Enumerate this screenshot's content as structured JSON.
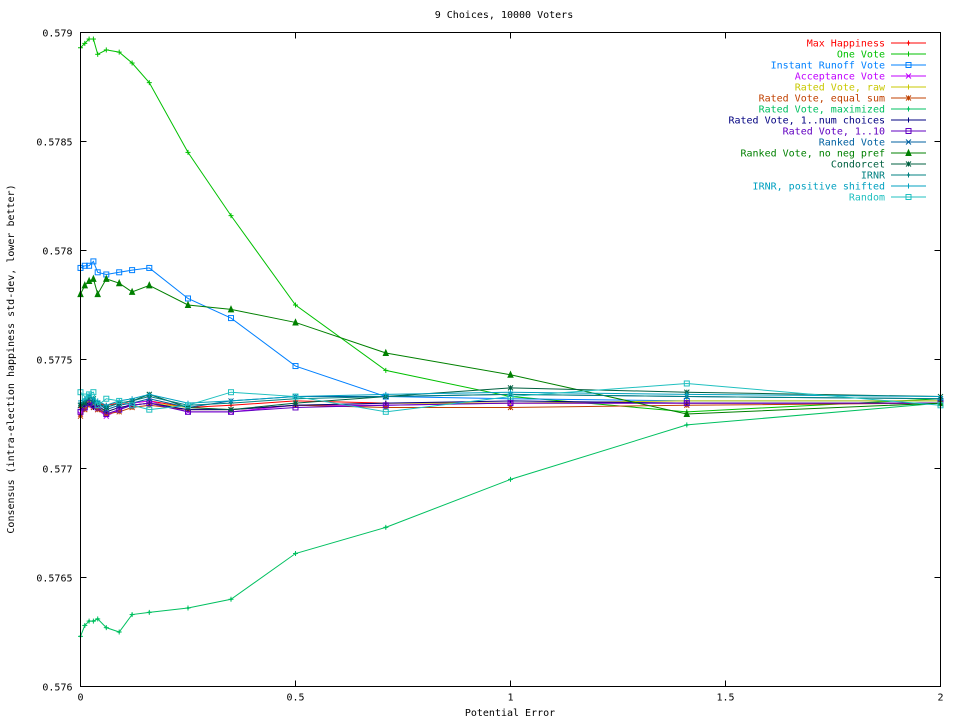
{
  "chart_data": {
    "type": "line",
    "title": "9 Choices, 10000 Voters",
    "xlabel": "Potential Error",
    "ylabel": "Consensus (intra-election happiness std-dev, lower better)",
    "xlim": [
      0,
      2
    ],
    "ylim": [
      0.576,
      0.579
    ],
    "x_ticks": [
      0,
      0.5,
      1,
      1.5,
      2
    ],
    "x_tick_labels": [
      "0",
      "0.5",
      "1",
      "1.5",
      "2"
    ],
    "y_ticks": [
      0.576,
      0.5765,
      0.577,
      0.5775,
      0.578,
      0.5785,
      0.579
    ],
    "y_tick_labels": [
      "0.576",
      "0.5765",
      "0.577",
      "0.5775",
      "0.578",
      "0.5785",
      "0.579"
    ],
    "grid": false,
    "legend_position": "top-right",
    "x": [
      0,
      0.01,
      0.02,
      0.03,
      0.04,
      0.06,
      0.09,
      0.12,
      0.16,
      0.25,
      0.35,
      0.5,
      0.71,
      1,
      1.41,
      2
    ],
    "series": [
      {
        "name": "Max Happiness",
        "color": "#ff0000",
        "marker": "plus-dot",
        "values": [
          0.57728,
          0.5773,
          0.57731,
          0.57729,
          0.5773,
          0.57729,
          0.5773,
          0.5773,
          0.57731,
          0.57728,
          0.57729,
          0.57731,
          0.5773,
          0.5773,
          0.5773,
          0.5773
        ]
      },
      {
        "name": "One Vote",
        "color": "#00c000",
        "marker": "plus",
        "values": [
          0.57893,
          0.57895,
          0.57897,
          0.57897,
          0.5789,
          0.57892,
          0.57891,
          0.57886,
          0.57877,
          0.57845,
          0.57816,
          0.57775,
          0.57745,
          0.57733,
          0.57726,
          0.57732
        ]
      },
      {
        "name": "Instant Runoff Vote",
        "color": "#0080ff",
        "marker": "square",
        "values": [
          0.57792,
          0.57793,
          0.57793,
          0.57795,
          0.5779,
          0.57789,
          0.5779,
          0.57791,
          0.57792,
          0.57778,
          0.57769,
          0.57747,
          0.57733,
          0.57732,
          0.57731,
          0.57731
        ]
      },
      {
        "name": "Acceptance Vote",
        "color": "#c000ff",
        "marker": "x",
        "values": [
          0.57725,
          0.57728,
          0.5773,
          0.57729,
          0.57727,
          0.57724,
          0.57727,
          0.5773,
          0.57731,
          0.57726,
          0.57726,
          0.57729,
          0.57729,
          0.5773,
          0.5773,
          0.5773
        ]
      },
      {
        "name": "Rated Vote, raw",
        "color": "#c8c800",
        "marker": "plus",
        "values": [
          0.57727,
          0.57728,
          0.57731,
          0.57729,
          0.57728,
          0.57726,
          0.57728,
          0.57729,
          0.5773,
          0.57728,
          0.57727,
          0.57729,
          0.5773,
          0.5773,
          0.57731,
          0.57731
        ]
      },
      {
        "name": "Rated Vote, equal sum",
        "color": "#c04000",
        "marker": "star",
        "values": [
          0.57724,
          0.57727,
          0.57729,
          0.57728,
          0.57727,
          0.57725,
          0.57726,
          0.57728,
          0.57729,
          0.57727,
          0.57727,
          0.57729,
          0.57728,
          0.57728,
          0.57729,
          0.5773
        ]
      },
      {
        "name": "Rated Vote, maximized",
        "color": "#00c060",
        "marker": "plus-dot",
        "values": [
          0.57623,
          0.57628,
          0.5763,
          0.5763,
          0.57631,
          0.57627,
          0.57625,
          0.57633,
          0.57634,
          0.57636,
          0.5764,
          0.57661,
          0.57673,
          0.57695,
          0.5772,
          0.5773
        ]
      },
      {
        "name": "Rated Vote, 1..num choices",
        "color": "#000080",
        "marker": "plus",
        "values": [
          0.57727,
          0.57729,
          0.5773,
          0.57728,
          0.57729,
          0.57726,
          0.57728,
          0.57729,
          0.5773,
          0.57727,
          0.57727,
          0.57729,
          0.5773,
          0.57731,
          0.5773,
          0.5773
        ]
      },
      {
        "name": "Rated Vote, 1..10",
        "color": "#6000c0",
        "marker": "square",
        "values": [
          0.57726,
          0.57728,
          0.5773,
          0.57729,
          0.57728,
          0.57725,
          0.57727,
          0.57729,
          0.5773,
          0.57726,
          0.57726,
          0.57728,
          0.57729,
          0.5773,
          0.5773,
          0.5773
        ]
      },
      {
        "name": "Ranked Vote",
        "color": "#0060a0",
        "marker": "x",
        "values": [
          0.57729,
          0.5773,
          0.57732,
          0.5773,
          0.5773,
          0.57727,
          0.57729,
          0.5773,
          0.57732,
          0.57728,
          0.57731,
          0.57733,
          0.57733,
          0.57734,
          0.57733,
          0.57732
        ]
      },
      {
        "name": "Ranked Vote, no neg pref",
        "color": "#008000",
        "marker": "triangle",
        "values": [
          0.5778,
          0.57784,
          0.57786,
          0.57787,
          0.5778,
          0.57787,
          0.57785,
          0.57781,
          0.57784,
          0.57775,
          0.57773,
          0.57767,
          0.57753,
          0.57743,
          0.57725,
          0.5773
        ]
      },
      {
        "name": "Condorcet",
        "color": "#006040",
        "marker": "star",
        "values": [
          0.57729,
          0.5773,
          0.57733,
          0.57732,
          0.5773,
          0.57728,
          0.5773,
          0.57731,
          0.57734,
          0.57728,
          0.57727,
          0.5773,
          0.57733,
          0.57737,
          0.57735,
          0.57733
        ]
      },
      {
        "name": "IRNR",
        "color": "#008080",
        "marker": "plus-dot",
        "values": [
          0.5773,
          0.57731,
          0.57733,
          0.57731,
          0.5773,
          0.57728,
          0.5773,
          0.57731,
          0.57733,
          0.57729,
          0.5773,
          0.57732,
          0.57733,
          0.57734,
          0.57733,
          0.57732
        ]
      },
      {
        "name": "IRNR, positive shifted",
        "color": "#00a0c0",
        "marker": "plus",
        "values": [
          0.57731,
          0.57732,
          0.57734,
          0.57732,
          0.57731,
          0.57729,
          0.57731,
          0.57732,
          0.57734,
          0.5773,
          0.57731,
          0.57733,
          0.57734,
          0.57735,
          0.57734,
          0.57733
        ]
      },
      {
        "name": "Random",
        "color": "#20c0c0",
        "marker": "square",
        "values": [
          0.57735,
          0.57733,
          0.57734,
          0.57735,
          0.57729,
          0.57732,
          0.57731,
          0.57729,
          0.57727,
          0.57729,
          0.57735,
          0.57733,
          0.57726,
          0.57733,
          0.57739,
          0.57729
        ]
      }
    ]
  }
}
